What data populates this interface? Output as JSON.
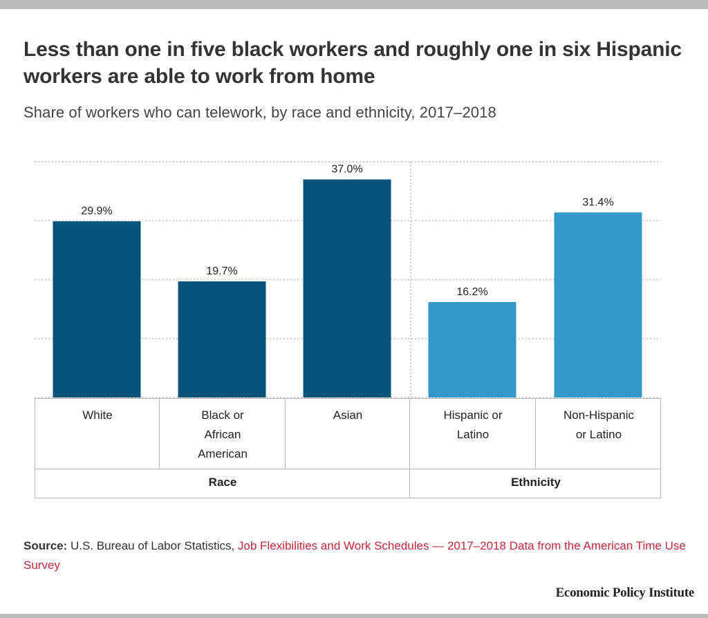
{
  "title": "Less than one in five black workers and roughly one in six Hispanic workers are able to work from home",
  "subtitle": "Share of workers who can telework, by race and ethnicity, 2017–2018",
  "colors": {
    "race_bar": "#08537a",
    "ethnicity_bar": "#3498cb",
    "gridline": "#cccccc",
    "link": "#c5283d",
    "frame": "#bbbbbb"
  },
  "chart_data": {
    "type": "bar",
    "title": "Less than one in five black workers and roughly one in six Hispanic workers are able to work from home",
    "subtitle": "Share of workers who can telework, by race and ethnicity, 2017–2018",
    "xlabel": "",
    "ylabel": "",
    "ylim": [
      0,
      40
    ],
    "grid": true,
    "gridlines": [
      0,
      10,
      20,
      30,
      40
    ],
    "categories": [
      "White",
      "Black or African American",
      "Asian",
      "Hispanic or Latino",
      "Non-Hispanic or Latino"
    ],
    "category_lines": [
      [
        "White"
      ],
      [
        "Black or",
        "African",
        "American"
      ],
      [
        "Asian"
      ],
      [
        "Hispanic or",
        "Latino"
      ],
      [
        "Non-Hispanic",
        "or Latino"
      ]
    ],
    "values": [
      29.9,
      19.7,
      37.0,
      16.2,
      31.4
    ],
    "value_labels": [
      "29.9%",
      "19.7%",
      "37.0%",
      "16.2%",
      "31.4%"
    ],
    "groups": [
      {
        "name": "Race",
        "categories": [
          "White",
          "Black or African American",
          "Asian"
        ]
      },
      {
        "name": "Ethnicity",
        "categories": [
          "Hispanic or Latino",
          "Non-Hispanic or Latino"
        ]
      }
    ],
    "legend": "none"
  },
  "source": {
    "label": "Source:",
    "text": " U.S. Bureau of Labor Statistics, ",
    "link_text": "Job Flexibilities and Work Schedules — 2017–2018 Data from the American Time Use Survey"
  },
  "branding": "Economic Policy Institute"
}
